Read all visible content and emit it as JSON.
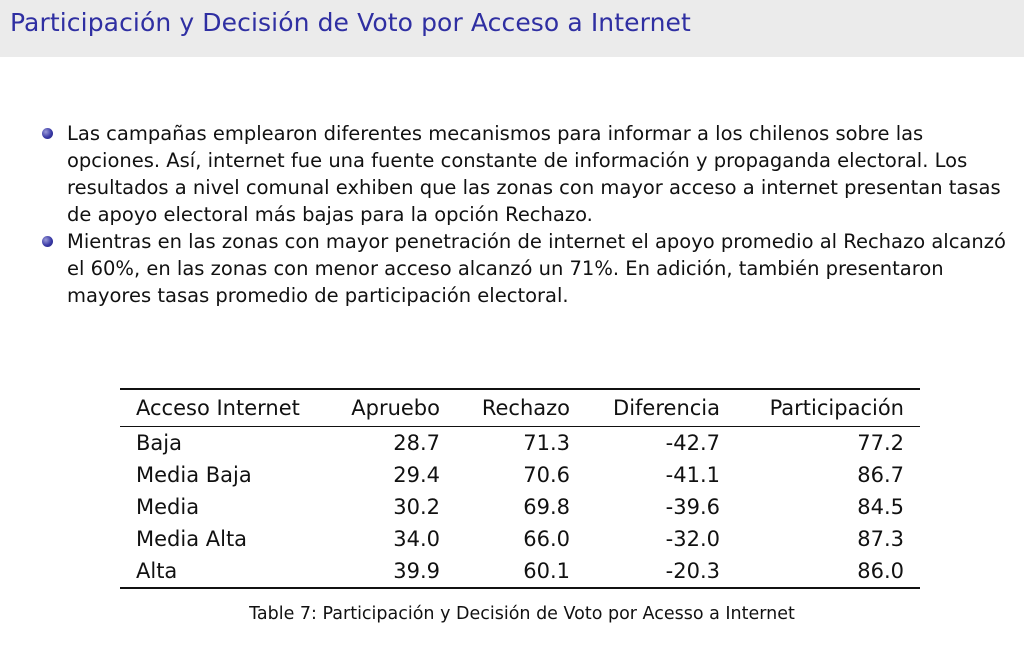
{
  "slide": {
    "title": "Participación y Decisión de Voto por Acceso a Internet"
  },
  "bullets": [
    "Las campañas emplearon diferentes mecanismos para informar a los chilenos sobre las opciones. Así, internet fue una fuente constante de información y propaganda electoral. Los resultados a nivel comunal exhiben que las zonas con mayor acceso a internet presentan tasas de apoyo electoral más bajas para la opción Rechazo.",
    "Mientras en las zonas con mayor penetración de internet el apoyo promedio al Rechazo alcanzó el 60%, en las zonas con menor acceso alcanzó un 71%. En adición, también presentaron mayores tasas promedio de participación electoral."
  ],
  "table": {
    "headers": [
      "Acceso Internet",
      "Apruebo",
      "Rechazo",
      "Diferencia",
      "Participación"
    ],
    "rows": [
      [
        "Baja",
        "28.7",
        "71.3",
        "-42.7",
        "77.2"
      ],
      [
        "Media Baja",
        "29.4",
        "70.6",
        "-41.1",
        "86.7"
      ],
      [
        "Media",
        "30.2",
        "69.8",
        "-39.6",
        "84.5"
      ],
      [
        "Media Alta",
        "34.0",
        "66.0",
        "-32.0",
        "87.3"
      ],
      [
        "Alta",
        "39.9",
        "60.1",
        "-20.3",
        "86.0"
      ]
    ],
    "caption": "Table 7: Participación y Decisión de Voto por Acesso a Internet"
  }
}
